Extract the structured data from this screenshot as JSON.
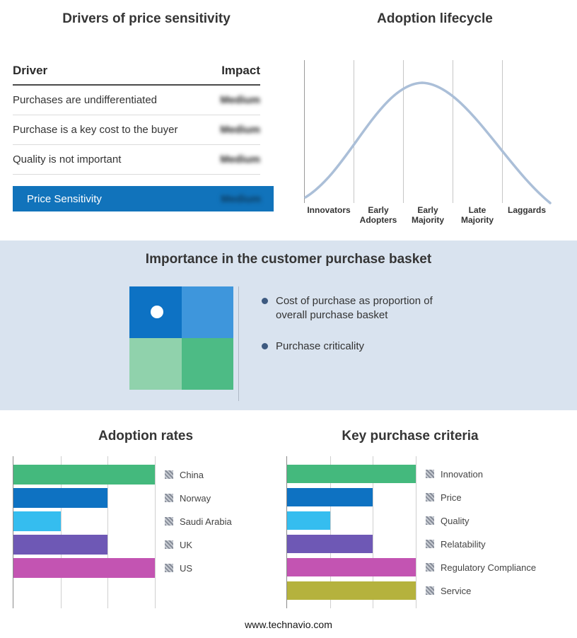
{
  "drivers": {
    "title": "Drivers of price sensitivity",
    "columns": {
      "driver": "Driver",
      "impact": "Impact"
    },
    "rows": [
      {
        "driver": "Purchases are undifferentiated",
        "impact": "Medium"
      },
      {
        "driver": "Purchase is a key cost to the buyer",
        "impact": "Medium"
      },
      {
        "driver": "Quality is not important",
        "impact": "Medium"
      }
    ],
    "summary_row": {
      "label": "Price Sensitivity",
      "impact": "Medium",
      "color": "#1173bb"
    }
  },
  "lifecycle": {
    "title": "Adoption lifecycle",
    "stages": [
      "Innovators",
      "Early Adopters",
      "Early Majority",
      "Late Majority",
      "Laggards"
    ],
    "curve_color": "#abbfd8"
  },
  "basket": {
    "title": "Importance in the customer purchase basket",
    "bullets": [
      "Cost of purchase as proportion of overall purchase basket",
      "Purchase criticality"
    ],
    "quadrants": {
      "top_left": "#0d72c4",
      "top_right": "#3e96dc",
      "bottom_left": "#90d2ac",
      "bottom_right": "#4dbb85"
    }
  },
  "footer": {
    "text": "www.technavio.com"
  },
  "chart_data": [
    {
      "id": "adoption",
      "type": "bar",
      "title": "Adoption rates",
      "orientation": "horizontal",
      "categories": [
        "China",
        "Norway",
        "Saudi Arabia",
        "UK",
        "US"
      ],
      "values": [
        3,
        2,
        1,
        2,
        3
      ],
      "xlim": [
        0,
        3
      ],
      "colors": [
        "#44b97d",
        "#0e72c2",
        "#35bdef",
        "#6e58b5",
        "#c354b2"
      ],
      "grid": true,
      "legend_position": "right"
    },
    {
      "id": "criteria",
      "type": "bar",
      "title": "Key purchase criteria",
      "orientation": "horizontal",
      "categories": [
        "Innovation",
        "Price",
        "Quality",
        "Relatability",
        "Regulatory Compliance",
        "Service"
      ],
      "values": [
        3,
        2,
        1,
        2,
        3,
        3
      ],
      "xlim": [
        0,
        3
      ],
      "colors": [
        "#44b97d",
        "#0e72c2",
        "#35bdef",
        "#6e58b5",
        "#c354b2",
        "#b5b23d"
      ],
      "grid": true,
      "legend_position": "right"
    },
    {
      "id": "lifecycle",
      "type": "line",
      "title": "Adoption lifecycle",
      "x": [
        "Innovators",
        "Early Adopters",
        "Early Majority",
        "Late Majority",
        "Laggards"
      ],
      "shape": "bell-curve",
      "peak_stage": "Early Majority"
    }
  ]
}
